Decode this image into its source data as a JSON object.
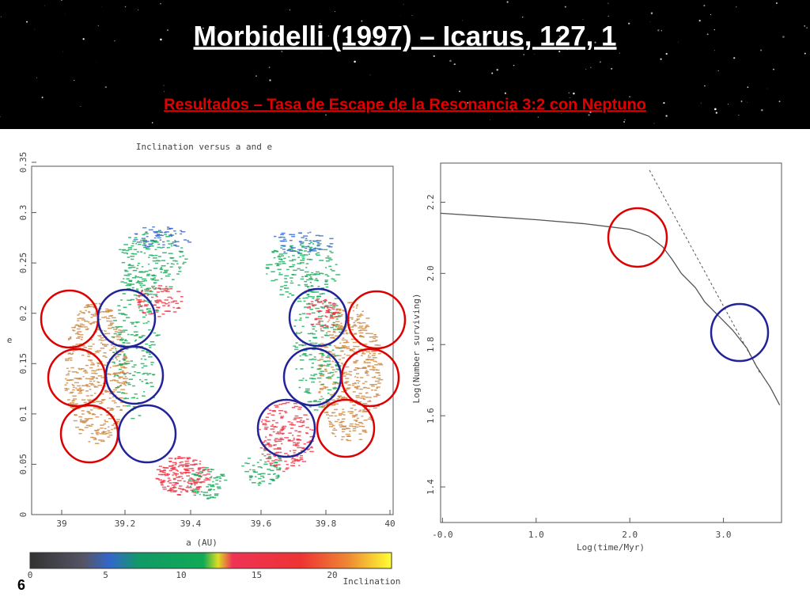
{
  "header": {
    "title": "Morbidelli (1997) – Icarus, 127, 1",
    "subtitle": "Resultados – Tasa de Escape de la Resonancia 3:2 con Neptuno"
  },
  "left_figure": {
    "title": "Inclination versus a and e",
    "xlabel": "a (AU)",
    "ylabel": "e",
    "xtick_labels": [
      "39",
      "39.2",
      "39.4",
      "39.6",
      "39.8",
      "40"
    ],
    "ytick_labels": [
      "0",
      "0.05",
      "0.1",
      "0.15",
      "0.2",
      "0.25",
      "0.3",
      "0.35"
    ],
    "colorbar_tick_labels": [
      "0",
      "5",
      "10",
      "15",
      "20"
    ],
    "colorbar_label": "Inclination"
  },
  "chart_data": {
    "type": "line",
    "xlabel": "Log(time/Myr)",
    "ylabel": "Log(Number surviving)",
    "xlim": [
      -0.02,
      3.62
    ],
    "ylim": [
      1.3,
      2.31
    ],
    "xticks": [
      {
        "value": 0,
        "label": "-0.0"
      },
      {
        "value": 1,
        "label": "1.0"
      },
      {
        "value": 2,
        "label": "2.0"
      },
      {
        "value": 3,
        "label": "3.0"
      }
    ],
    "yticks": [
      1.4,
      1.6,
      1.8,
      {
        "value": 2,
        "label": "2.0"
      },
      2.2
    ],
    "series": [
      {
        "color": "#555555",
        "dashed": false,
        "x": [
          -0.02,
          0.5,
          1.0,
          1.5,
          2.0,
          2.2,
          2.35,
          2.45,
          2.55,
          2.7,
          2.8,
          2.95,
          3.1,
          3.25,
          3.35,
          3.5,
          3.6
        ],
        "values": [
          2.169,
          2.16,
          2.151,
          2.14,
          2.124,
          2.105,
          2.075,
          2.04,
          2.0,
          1.96,
          1.92,
          1.88,
          1.84,
          1.79,
          1.74,
          1.68,
          1.63
        ]
      },
      {
        "color": "#555555",
        "dashed": true,
        "x": [
          2.21,
          3.39
        ],
        "values": [
          2.29,
          1.72
        ]
      }
    ]
  },
  "page_number": "6"
}
